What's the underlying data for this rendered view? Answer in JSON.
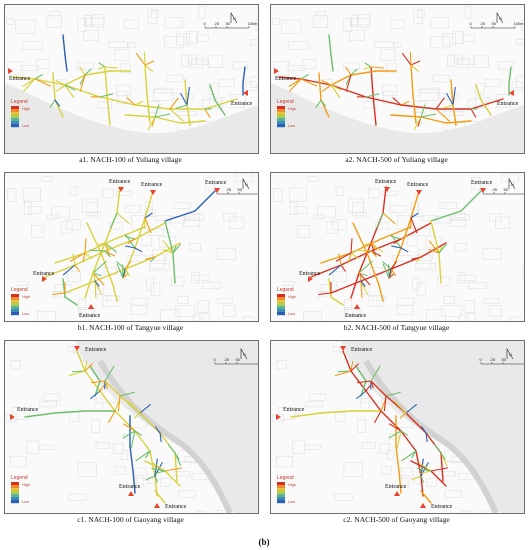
{
  "figure_label": "(b)",
  "legend": {
    "title": "Legend",
    "high": "High",
    "low": "Low"
  },
  "scale": {
    "north": "N",
    "ticks": [
      "0",
      "25",
      "50",
      "100m"
    ]
  },
  "entrance_label": "Entrance",
  "panels": [
    {
      "id": "a1",
      "caption": "a1. NACH-100 of Yuliang village"
    },
    {
      "id": "a2",
      "caption": "a2. NACH-500 of Yuliang village"
    },
    {
      "id": "b1",
      "caption": "b1. NACH-100 of Tangyue village"
    },
    {
      "id": "b2",
      "caption": "b2. NACH-500 of Tangyue village"
    },
    {
      "id": "c1",
      "caption": "c1. NACH-100 of Gaoyang village"
    },
    {
      "id": "c2",
      "caption": "c2. NACH-500 of Gaoyang village"
    }
  ],
  "colors": {
    "high": "#d7301f",
    "mid_high": "#f39c12",
    "mid": "#d8d13a",
    "mid_low": "#6cbf6c",
    "low": "#2b5fb3",
    "river": "#e9e9e9",
    "entrance_marker": "#e8442c"
  }
}
